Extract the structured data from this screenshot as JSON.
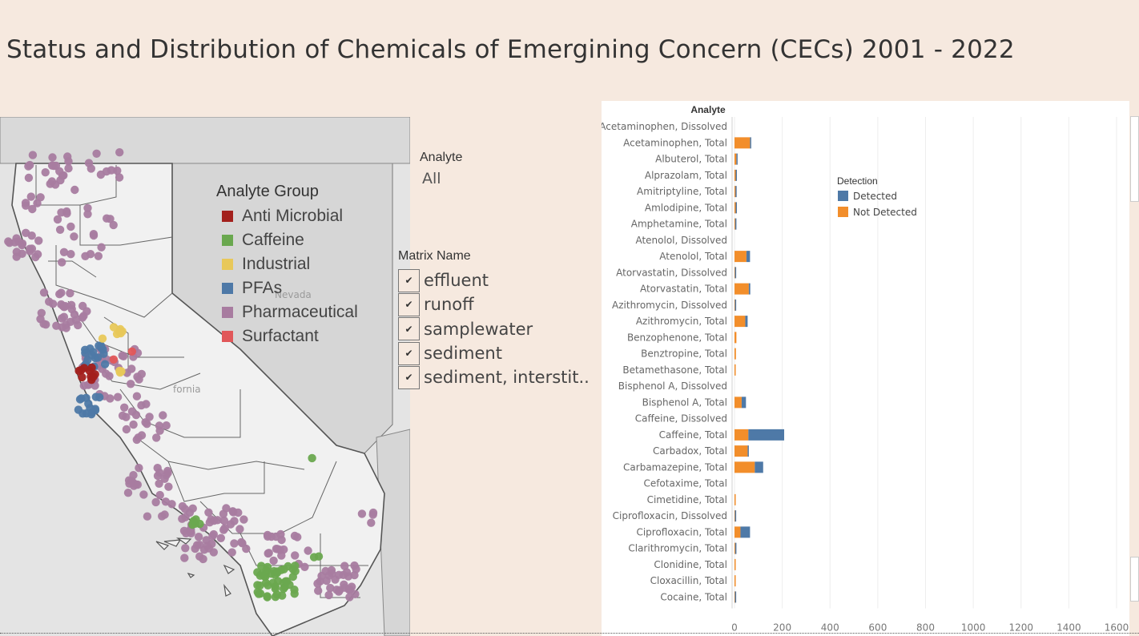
{
  "title": "Status and Distribution of Chemicals of Emergining Concern (CECs) 2001 - 2022",
  "map": {
    "legend_title": "Analyte Group",
    "groups": [
      {
        "label": "Anti Microbial",
        "color": "#a3201c"
      },
      {
        "label": "Caffeine",
        "color": "#6aa84f"
      },
      {
        "label": "Industrial",
        "color": "#e8c85a"
      },
      {
        "label": "PFAs",
        "color": "#4e79a7"
      },
      {
        "label": "Pharmaceutical",
        "color": "#a87ca0"
      },
      {
        "label": "Surfactant",
        "color": "#e15759"
      }
    ],
    "place_labels": [
      "Nevada",
      "fornia"
    ]
  },
  "analyte_filter": {
    "title": "Analyte",
    "value": "All"
  },
  "matrix_filter": {
    "title": "Matrix Name",
    "items": [
      {
        "label": "effluent",
        "check": "✔"
      },
      {
        "label": "runoff",
        "check": "✔"
      },
      {
        "label": "samplewater",
        "check": "✔"
      },
      {
        "label": "sediment",
        "check": "✔"
      },
      {
        "label": "sediment, interstit..",
        "check": "✔"
      }
    ]
  },
  "chart_data": {
    "type": "bar",
    "orientation": "horizontal",
    "stacked": true,
    "y_header": "Analyte",
    "legend_title": "Detection",
    "legend_placement": "top-right",
    "xlim": [
      0,
      1650
    ],
    "xticks": [
      0,
      200,
      400,
      600,
      800,
      1000,
      1200,
      1400,
      1600
    ],
    "grid": true,
    "categories": [
      "Acetaminophen, Dissolved",
      "Acetaminophen, Total",
      "Albuterol, Total",
      "Alprazolam, Total",
      "Amitriptyline, Total",
      "Amlodipine, Total",
      "Amphetamine, Total",
      "Atenolol, Dissolved",
      "Atenolol, Total",
      "Atorvastatin, Dissolved",
      "Atorvastatin, Total",
      "Azithromycin, Dissolved",
      "Azithromycin, Total",
      "Benzophenone, Total",
      "Benztropine, Total",
      "Betamethasone, Total",
      "Bisphenol A, Dissolved",
      "Bisphenol A, Total",
      "Caffeine, Dissolved",
      "Caffeine, Total",
      "Carbadox, Total",
      "Carbamazepine, Total",
      "Cefotaxime, Total",
      "Cimetidine, Total",
      "Ciprofloxacin, Dissolved",
      "Ciprofloxacin, Total",
      "Clarithromycin, Total",
      "Clonidine, Total",
      "Cloxacillin, Total",
      "Cocaine, Total"
    ],
    "series": [
      {
        "name": "Not Detected",
        "color": "#f28e2b",
        "values": [
          0,
          65,
          8,
          5,
          4,
          5,
          3,
          0,
          50,
          2,
          60,
          2,
          45,
          8,
          6,
          5,
          0,
          30,
          0,
          58,
          55,
          85,
          0,
          5,
          2,
          25,
          3,
          5,
          5,
          2
        ]
      },
      {
        "name": "Detected",
        "color": "#4e79a7",
        "values": [
          0,
          2,
          3,
          1,
          2,
          1,
          3,
          0,
          15,
          1,
          6,
          1,
          10,
          0,
          0,
          0,
          0,
          18,
          0,
          150,
          2,
          35,
          0,
          0,
          1,
          40,
          2,
          0,
          0,
          4
        ]
      }
    ]
  }
}
